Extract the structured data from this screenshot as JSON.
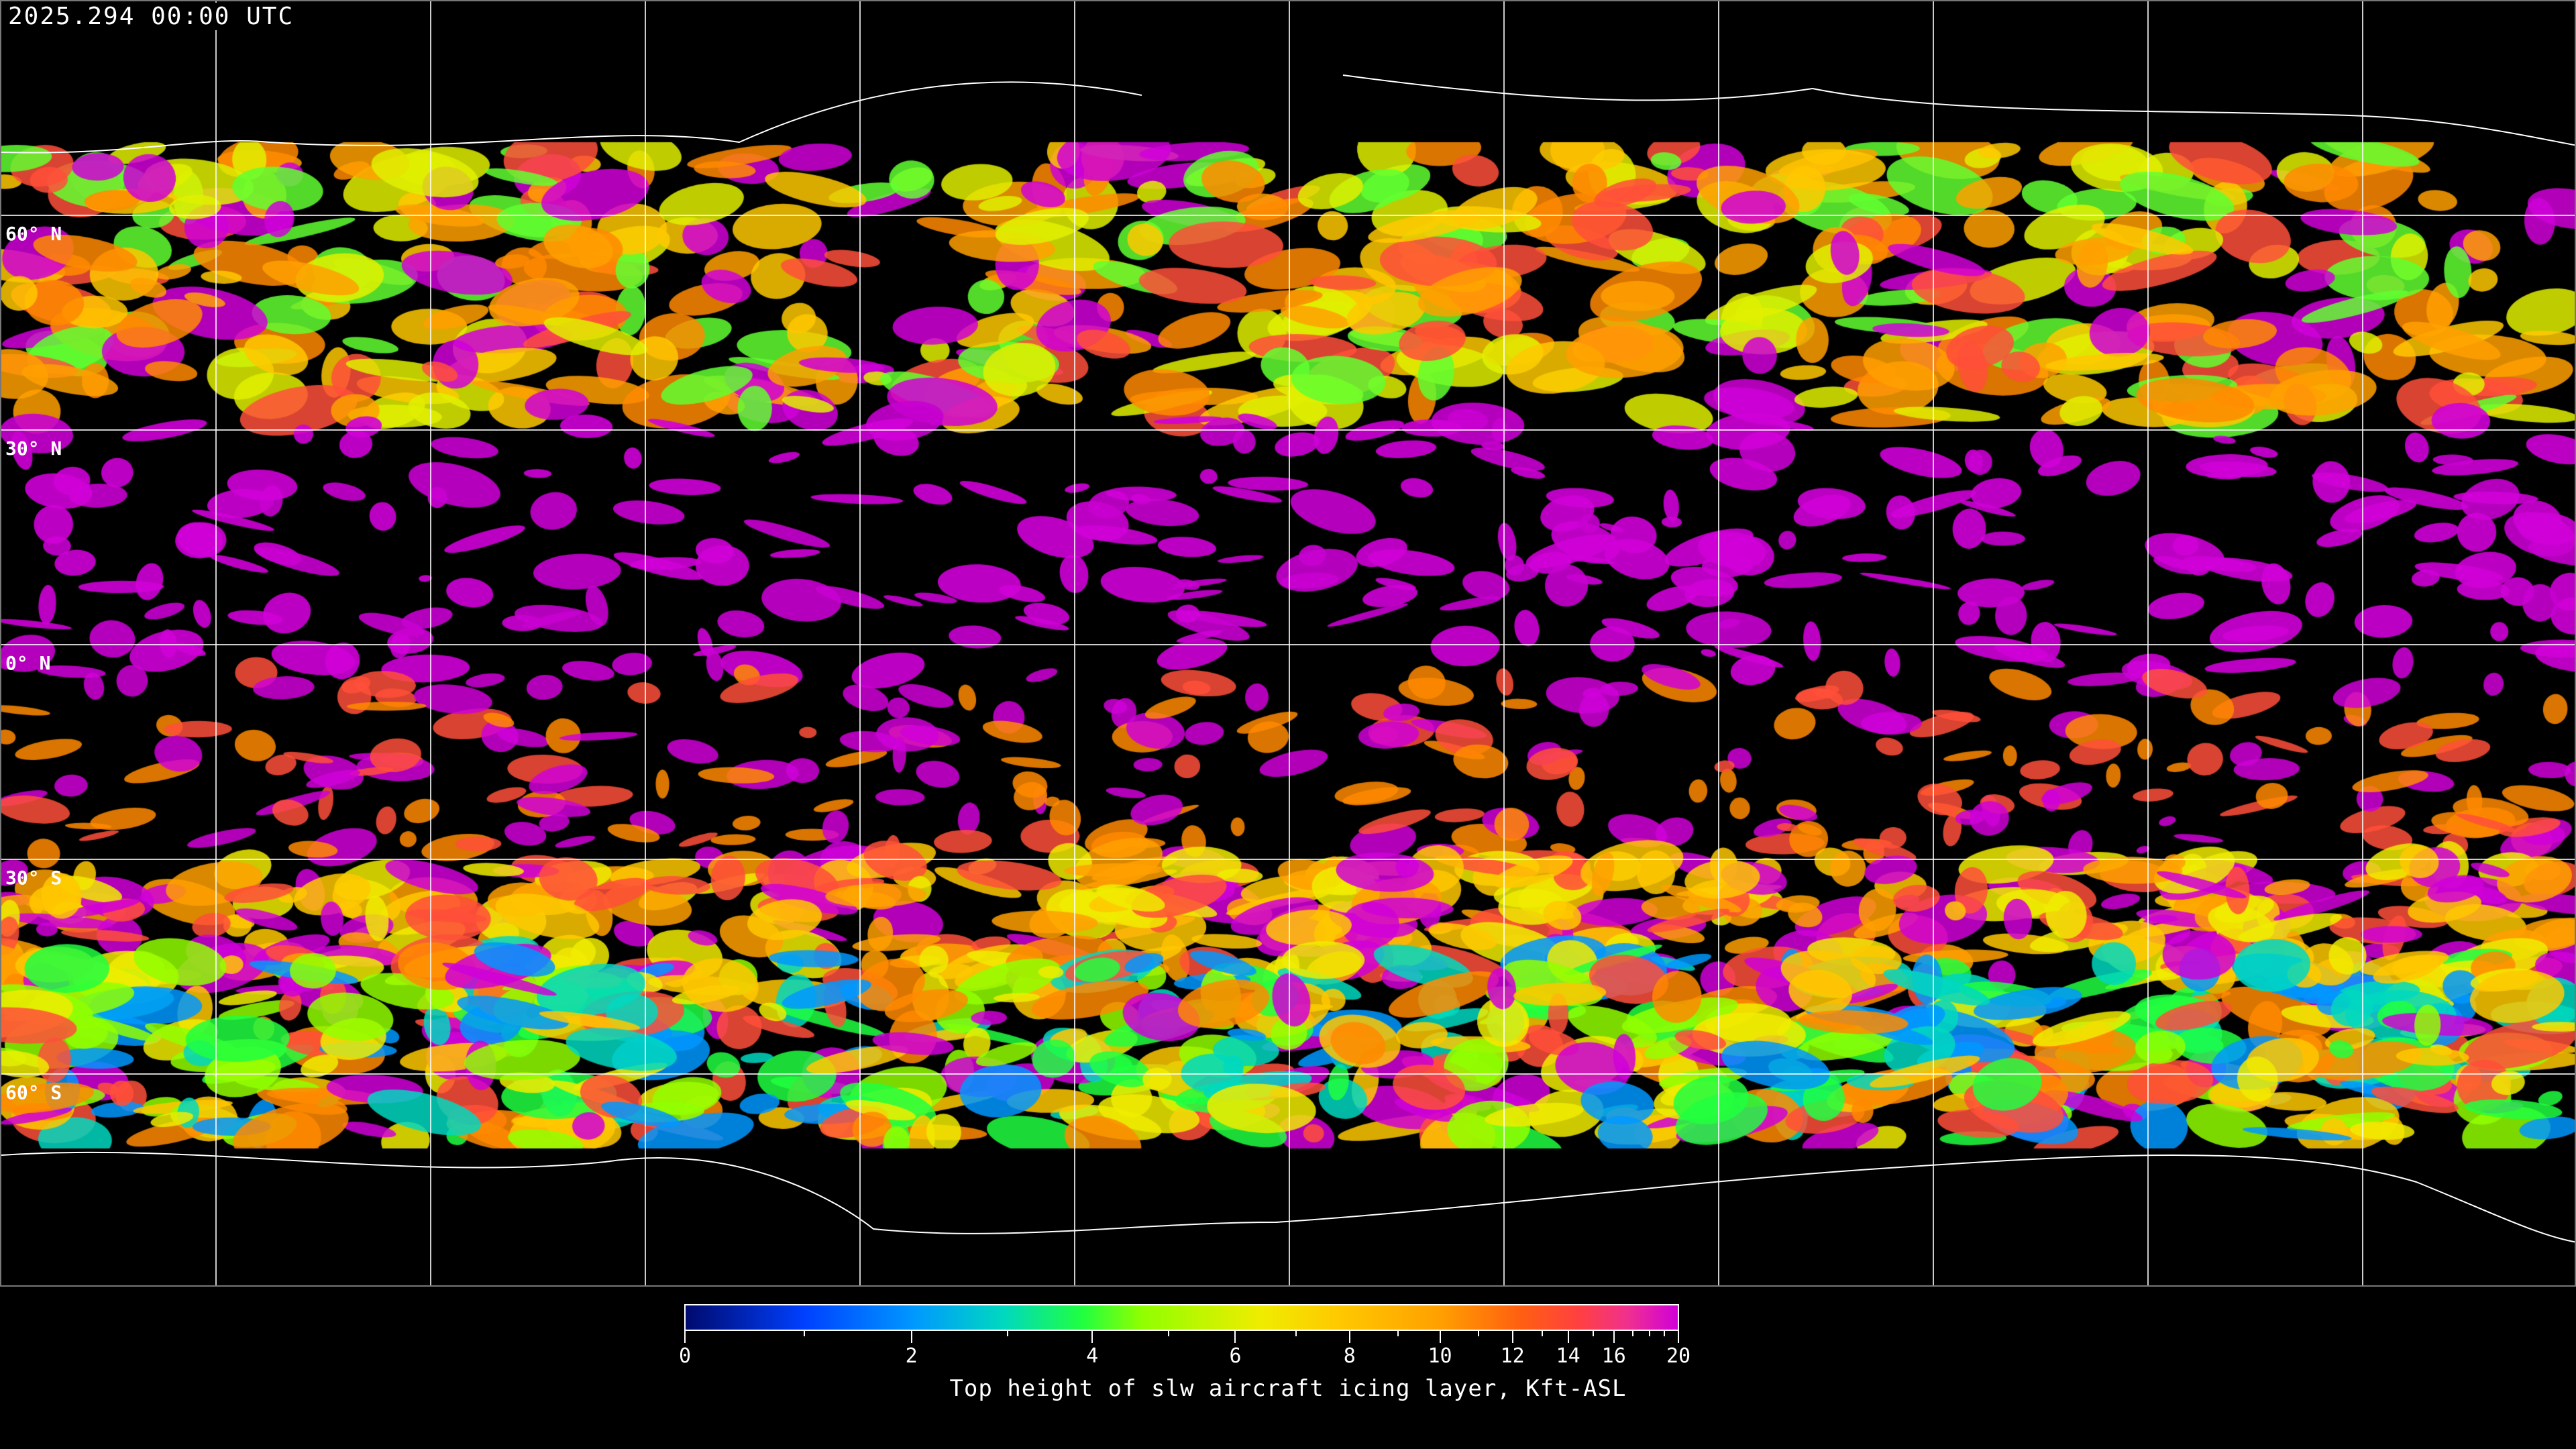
{
  "timestamp": "2025.294 00:00 UTC",
  "map": {
    "latitude_labels": [
      "60° N",
      "30° N",
      "0° N",
      "30° S",
      "60° S"
    ],
    "background_color": "#000000",
    "grid_color": "#ffffff",
    "coastline_color": "#ffffff"
  },
  "colorbar": {
    "title": "Top height of slw aircraft icing layer, Kft-ASL",
    "range": [
      0,
      20
    ],
    "tick_labels": [
      "0",
      "2",
      "4",
      "6",
      "8",
      "10",
      "12",
      "14",
      "16",
      "20"
    ],
    "colors": [
      "#000a6e",
      "#0040ff",
      "#0098ff",
      "#00d8c0",
      "#20ff40",
      "#90ff00",
      "#f0ec00",
      "#ffc800",
      "#ffa000",
      "#ff6010",
      "#ff4040",
      "#d000d8"
    ]
  }
}
